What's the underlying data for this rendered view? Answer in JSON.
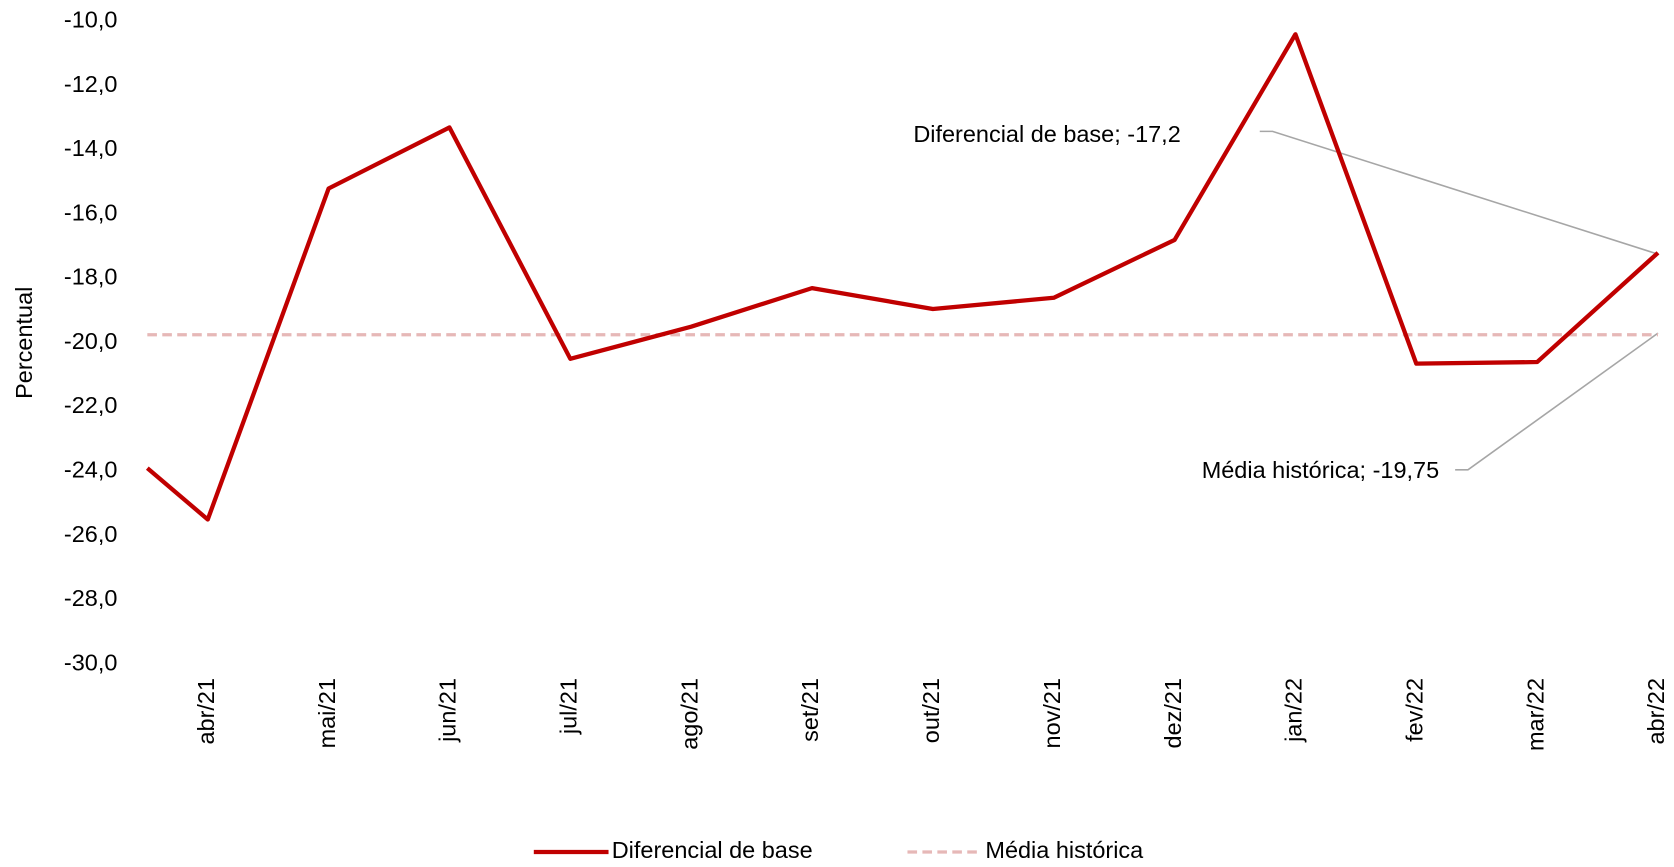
{
  "chart_data": {
    "type": "line",
    "y_label": "Percentual",
    "categories": [
      null,
      "abr/21",
      "mai/21",
      "jun/21",
      "jul/21",
      "ago/21",
      "set/21",
      "out/21",
      "nov/21",
      "dez/21",
      "jan/22",
      "fev/22",
      "mar/22",
      "abr/22"
    ],
    "series": [
      {
        "name": "Diferencial de base",
        "color": "#c00000",
        "values": [
          -23.9,
          -25.5,
          -15.2,
          -13.3,
          -20.5,
          -19.5,
          -18.3,
          -18.95,
          -18.6,
          -16.8,
          -10.4,
          -20.65,
          -20.6,
          -17.2
        ]
      }
    ],
    "reference_lines": [
      {
        "name": "Média histórica",
        "value": -19.75,
        "color": "#e6b8b7",
        "dashed": true
      }
    ],
    "annotations": [
      "Diferencial de base; -17,2",
      "Média histórica; -19,75"
    ],
    "ylim": [
      -30,
      -10
    ],
    "yticks": [
      {
        "value": -10,
        "label": "-10,0"
      },
      {
        "value": -12,
        "label": "-12,0"
      },
      {
        "value": -14,
        "label": "-14,0"
      },
      {
        "value": -16,
        "label": "-16,0"
      },
      {
        "value": -18,
        "label": "-18,0"
      },
      {
        "value": -20,
        "label": "-20,0"
      },
      {
        "value": -22,
        "label": "-22,0"
      },
      {
        "value": -24,
        "label": "-24,0"
      },
      {
        "value": -26,
        "label": "-26,0"
      },
      {
        "value": -28,
        "label": "-28,0"
      },
      {
        "value": -30,
        "label": "-30,0"
      }
    ],
    "legend": "bottom"
  }
}
